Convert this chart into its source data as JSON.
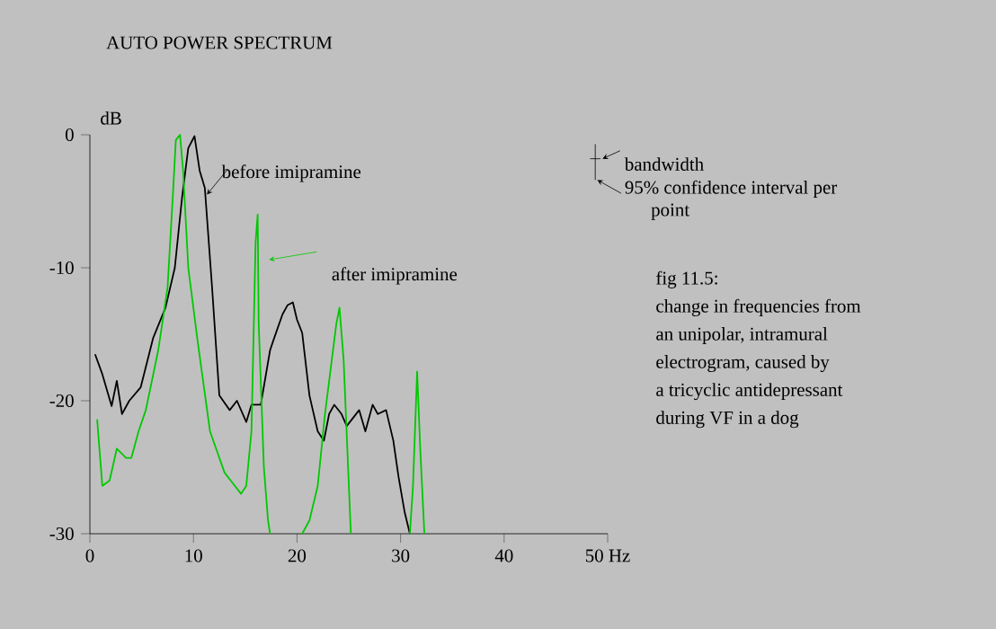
{
  "chart_data": {
    "type": "line",
    "title": "AUTO POWER SPECTRUM",
    "ylabel": "dB",
    "xlim": [
      0,
      50
    ],
    "ylim": [
      -30,
      0
    ],
    "xticks": [
      0,
      10,
      20,
      30,
      40,
      {
        "value": 50,
        "label": "50 Hz"
      }
    ],
    "yticks": [
      -30,
      -20,
      -10,
      0
    ],
    "series": [
      {
        "name": "before imipramine",
        "color": "#000000",
        "x": [
          0.5,
          1.2,
          2.1,
          2.6,
          3.1,
          3.8,
          4.9,
          6.1,
          7.3,
          8.2,
          8.9,
          9.5,
          10.1,
          10.6,
          11.1,
          11.8,
          12.5,
          13.5,
          14.2,
          15.1,
          15.6,
          16.5,
          17.4,
          17.7,
          18.6,
          19.1,
          19.6,
          20,
          20.5,
          21.2,
          22,
          22.6,
          23.1,
          23.6,
          24.3,
          24.8,
          26,
          26.6,
          27.3,
          27.8,
          28.6,
          29.3,
          29.8,
          30.4,
          30.9
        ],
        "values": [
          -16.5,
          -18,
          -20.4,
          -18.5,
          -21,
          -20,
          -19,
          -15.3,
          -13,
          -10,
          -4.7,
          -1,
          -0.1,
          -2.7,
          -4,
          -11.5,
          -19.6,
          -20.7,
          -20,
          -21.6,
          -20.3,
          -20.3,
          -16.2,
          -15.5,
          -13.5,
          -12.8,
          -12.6,
          -13.9,
          -14.9,
          -19.6,
          -22.3,
          -23,
          -21,
          -20.3,
          -21,
          -21.9,
          -20.7,
          -22.3,
          -20.3,
          -21,
          -20.7,
          -23,
          -25.7,
          -28.4,
          -30
        ]
      },
      {
        "name": "after imipramine",
        "color": "#00c800",
        "x": [
          0.7,
          1.2,
          1.9,
          2.6,
          3.5,
          4,
          4.7,
          5.4,
          6.6,
          7.5,
          8,
          8.3,
          8.7,
          9,
          9.5,
          10.4,
          11.6,
          13,
          14.6,
          15.1,
          15.6,
          16,
          16.2,
          16.3,
          16.8,
          17.2,
          17.4,
          18,
          20.5,
          21.2,
          22,
          22.7,
          23.8,
          24.1,
          24.5,
          25.2,
          28,
          30.9,
          31.2,
          31.6,
          31.9,
          32.3
        ],
        "values": [
          -21.4,
          -26.4,
          -26,
          -23.6,
          -24.3,
          -24.3,
          -22.3,
          -20.7,
          -16.2,
          -11.5,
          -4.7,
          -0.4,
          0,
          -2.7,
          -10,
          -15.5,
          -22.3,
          -25.4,
          -27,
          -26.4,
          -22.3,
          -8.1,
          -6,
          -14.2,
          -25,
          -29,
          -30,
          null,
          -30,
          -29,
          -26.4,
          -21,
          -14.2,
          -13,
          -16.9,
          -30,
          null,
          -30,
          -26.4,
          -17.8,
          -23.6,
          -30
        ]
      }
    ],
    "annotations": [
      "bandwidth",
      "95% confidence interval per point",
      "fig 11.5:",
      "change in frequencies from",
      "an unipolar, intramural",
      "electrogram, caused by",
      "a tricyclic antidepressant",
      "during VF in a dog"
    ]
  }
}
